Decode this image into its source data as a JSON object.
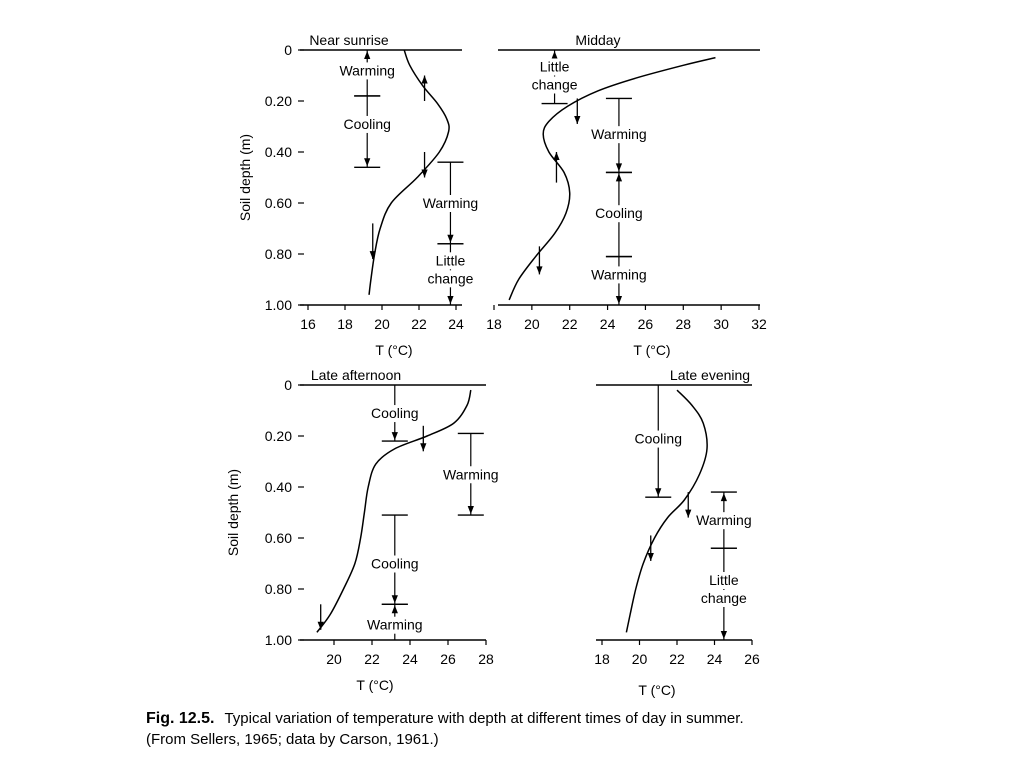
{
  "chart_data": [
    {
      "type": "line",
      "title": "Near sunrise",
      "xlabel": "T (°C)",
      "ylabel": "Soil depth (m)",
      "xlim": [
        16,
        24
      ],
      "xticks": [
        16,
        18,
        20,
        22,
        24
      ],
      "ylim": [
        0,
        1.0
      ],
      "yticks": [
        "0",
        "0.20",
        "0.40",
        "0.60",
        "0.80",
        "1.00"
      ],
      "ytick_values": [
        0,
        0.2,
        0.4,
        0.6,
        0.8,
        1.0
      ],
      "series": [
        {
          "x": [
            21.2,
            21.5,
            22.2,
            23.0,
            23.5,
            23.6,
            23.1,
            21.9,
            20.5,
            19.9,
            19.6,
            19.4,
            19.3
          ],
          "y": [
            0.0,
            0.06,
            0.14,
            0.21,
            0.27,
            0.32,
            0.4,
            0.5,
            0.6,
            0.7,
            0.8,
            0.9,
            0.96
          ]
        }
      ],
      "arrows": [
        {
          "x": 22.3,
          "y1": 0.2,
          "y2": 0.1
        },
        {
          "x": 22.3,
          "y1": 0.4,
          "y2": 0.5
        },
        {
          "x": 19.5,
          "y1": 0.68,
          "y2": 0.82
        }
      ],
      "zones": [
        {
          "x": 19.2,
          "from": 0.0,
          "to": 0.18,
          "label": "Warming",
          "label_y": 0.08,
          "arrow": "up"
        },
        {
          "x": 19.2,
          "from": 0.18,
          "to": 0.46,
          "label": "Cooling",
          "label_y": 0.29,
          "arrow": "down"
        },
        {
          "x": 23.7,
          "from": 0.44,
          "to": 0.76,
          "label": "Warming",
          "label_y": 0.6,
          "arrow": "down"
        },
        {
          "x": 23.7,
          "from": 0.76,
          "to": 1.0,
          "label": "Little\nchange",
          "label_y": 0.86,
          "arrow": "down"
        }
      ]
    },
    {
      "type": "line",
      "title": "Midday",
      "xlabel": "T (°C)",
      "ylabel": "",
      "xlim": [
        18,
        32
      ],
      "xticks": [
        18,
        20,
        22,
        24,
        26,
        28,
        30,
        32
      ],
      "ylim": [
        0,
        1.0
      ],
      "yticks": [],
      "ytick_values": [],
      "series": [
        {
          "x": [
            29.7,
            28.0,
            25.5,
            23.5,
            21.9,
            20.9,
            20.6,
            20.9,
            21.7,
            22.0,
            21.8,
            21.2,
            20.2,
            19.3,
            18.8
          ],
          "y": [
            0.03,
            0.06,
            0.11,
            0.16,
            0.22,
            0.28,
            0.33,
            0.4,
            0.48,
            0.56,
            0.64,
            0.72,
            0.81,
            0.9,
            0.98
          ]
        }
      ],
      "arrows": [
        {
          "x": 22.4,
          "y1": 0.19,
          "y2": 0.29
        },
        {
          "x": 21.3,
          "y1": 0.52,
          "y2": 0.4
        },
        {
          "x": 20.4,
          "y1": 0.77,
          "y2": 0.88
        }
      ],
      "zones": [
        {
          "x": 21.2,
          "from": 0.0,
          "to": 0.21,
          "label": "Little\nchange",
          "label_y": 0.1,
          "arrow": "up"
        },
        {
          "x": 24.6,
          "from": 0.19,
          "to": 0.48,
          "label": "Warming",
          "label_y": 0.33,
          "arrow": "down"
        },
        {
          "x": 24.6,
          "from": 0.48,
          "to": 0.81,
          "label": "Cooling",
          "label_y": 0.64,
          "arrow": "up"
        },
        {
          "x": 24.6,
          "from": 0.81,
          "to": 1.0,
          "label": "Warming",
          "label_y": 0.88,
          "arrow": "down"
        }
      ]
    },
    {
      "type": "line",
      "title": "Late afternoon",
      "xlabel": "T (°C)",
      "ylabel": "Soil depth (m)",
      "xlim": [
        18,
        28
      ],
      "xticks": [
        20,
        22,
        24,
        26,
        28
      ],
      "ylim": [
        0,
        1.0
      ],
      "yticks": [
        "0",
        "0.20",
        "0.40",
        "0.60",
        "0.80",
        "1.00"
      ],
      "ytick_values": [
        0,
        0.2,
        0.4,
        0.6,
        0.8,
        1.0
      ],
      "series": [
        {
          "x": [
            27.2,
            27.0,
            26.3,
            24.9,
            23.2,
            22.2,
            21.8,
            21.6,
            21.4,
            21.1,
            20.5,
            19.8,
            19.1
          ],
          "y": [
            0.02,
            0.08,
            0.15,
            0.2,
            0.25,
            0.31,
            0.4,
            0.5,
            0.6,
            0.7,
            0.8,
            0.9,
            0.97
          ]
        }
      ],
      "arrows": [
        {
          "x": 24.7,
          "y1": 0.16,
          "y2": 0.26
        },
        {
          "x": 19.3,
          "y1": 0.86,
          "y2": 0.96
        }
      ],
      "zones": [
        {
          "x": 23.2,
          "from": 0.0,
          "to": 0.22,
          "label": "Cooling",
          "label_y": 0.11,
          "arrow": "down"
        },
        {
          "x": 27.2,
          "from": 0.19,
          "to": 0.51,
          "label": "Warming",
          "label_y": 0.35,
          "arrow": "down"
        },
        {
          "x": 23.2,
          "from": 0.51,
          "to": 0.86,
          "label": "Cooling",
          "label_y": 0.7,
          "arrow": "down"
        },
        {
          "x": 23.2,
          "from": 0.86,
          "to": 1.0,
          "label": "Warming",
          "label_y": 0.94,
          "arrow": "up"
        }
      ]
    },
    {
      "type": "line",
      "title": "Late evening",
      "xlabel": "T (°C)",
      "ylabel": "",
      "xlim": [
        18,
        26
      ],
      "xticks": [
        18,
        20,
        22,
        24,
        26
      ],
      "ylim": [
        0,
        1.0
      ],
      "yticks": [],
      "ytick_values": [],
      "series": [
        {
          "x": [
            22.0,
            22.8,
            23.4,
            23.6,
            23.2,
            22.4,
            21.5,
            20.8,
            20.2,
            19.8,
            19.5,
            19.3
          ],
          "y": [
            0.02,
            0.08,
            0.15,
            0.25,
            0.35,
            0.45,
            0.52,
            0.6,
            0.7,
            0.8,
            0.9,
            0.97
          ]
        }
      ],
      "arrows": [
        {
          "x": 22.6,
          "y1": 0.42,
          "y2": 0.52
        },
        {
          "x": 20.6,
          "y1": 0.59,
          "y2": 0.69
        }
      ],
      "zones": [
        {
          "x": 21.0,
          "from": 0.0,
          "to": 0.44,
          "label": "Cooling",
          "label_y": 0.21,
          "arrow": "down"
        },
        {
          "x": 24.5,
          "from": 0.42,
          "to": 0.64,
          "label": "Warming",
          "label_y": 0.53,
          "arrow": "up"
        },
        {
          "x": 24.5,
          "from": 0.64,
          "to": 1.0,
          "label": "Little\nchange",
          "label_y": 0.8,
          "arrow": "down"
        }
      ]
    }
  ],
  "caption": {
    "label": "Fig. 12.5.",
    "line1": "Typical variation of temperature with depth at different times of day in summer.",
    "line2": "(From Sellers, 1965; data by Carson, 1961.)"
  }
}
